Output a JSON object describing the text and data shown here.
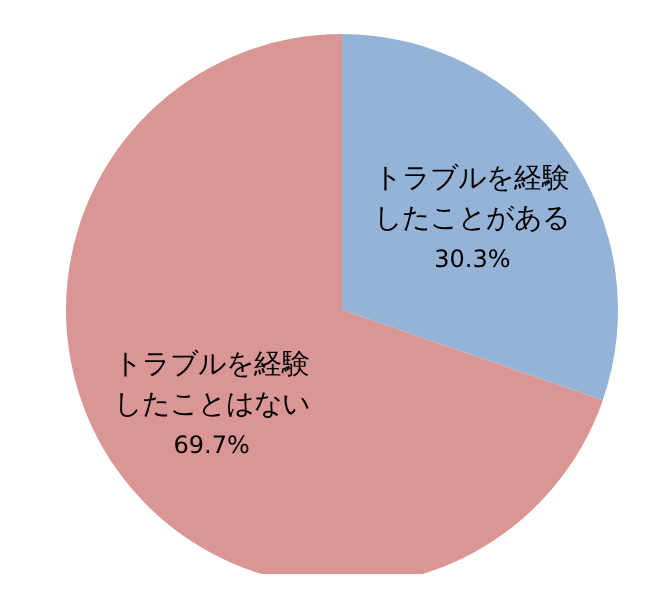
{
  "chart_data": {
    "type": "pie",
    "categories": [
      "トラブルを経験したことがある",
      "トラブルを経験したことはない"
    ],
    "values": [
      30.3,
      69.7
    ],
    "colors": [
      "#95b3d7",
      "#d99694"
    ],
    "value_labels": [
      "30.3%",
      "69.7%"
    ]
  }
}
